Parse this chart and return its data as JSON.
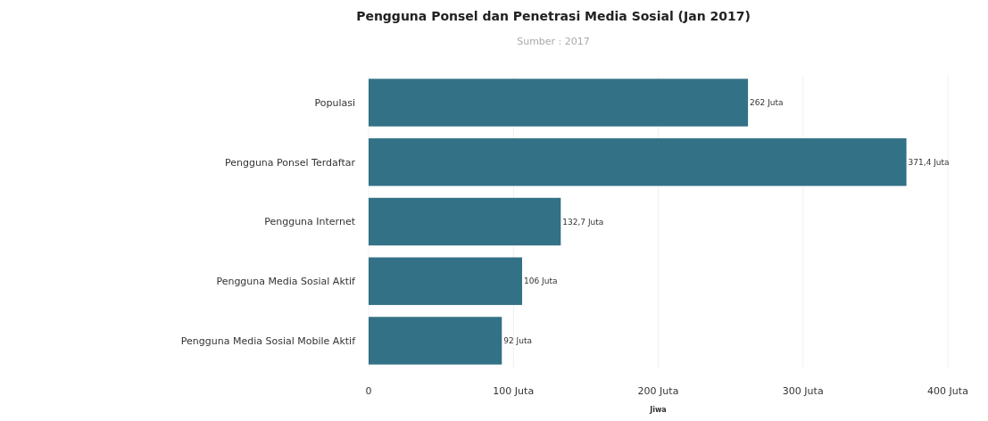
{
  "chart_data": {
    "type": "bar",
    "orientation": "horizontal",
    "title": "Pengguna Ponsel dan Penetrasi Media Sosial (Jan 2017)",
    "subtitle": "Sumber : 2017",
    "xlabel": "Jiwa",
    "categories": [
      "Populasi",
      "Pengguna Ponsel Terdaftar",
      "Pengguna Internet",
      "Pengguna Media Sosial Aktif",
      "Pengguna Media Sosial Mobile Aktif"
    ],
    "values": [
      262,
      371.4,
      132.7,
      106,
      92
    ],
    "value_labels": [
      "262 Juta",
      "371,4 Juta",
      "132,7 Juta",
      "106 Juta",
      "92 Juta"
    ],
    "color": "#337186",
    "xlim": [
      0,
      400
    ],
    "xticks": [
      0,
      {
        "value": 100,
        "label": "100 Juta"
      },
      {
        "value": 200,
        "label": "200 Juta"
      },
      {
        "value": 300,
        "label": "300 Juta"
      },
      {
        "value": 400,
        "label": "400 Juta"
      }
    ],
    "grid": "x"
  }
}
